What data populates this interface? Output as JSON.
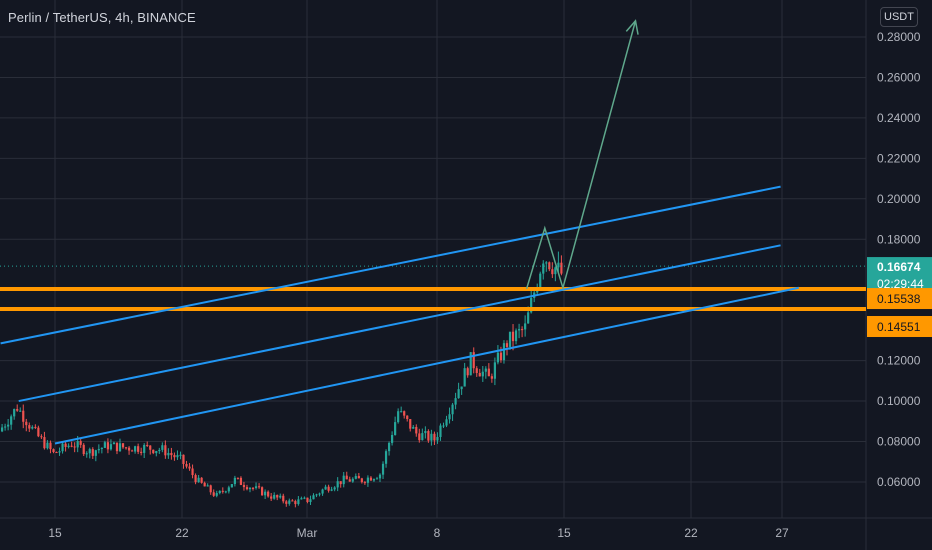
{
  "header": {
    "symbol": "Perlin / TetherUS",
    "interval": "4h",
    "exchange": "BINANCE"
  },
  "currency_button": {
    "label": "USDT"
  },
  "colors": {
    "background": "#131722",
    "grid": "#2a2e39",
    "candle_up": "#26a69a",
    "candle_down": "#ef5350",
    "channel": "#2196f3",
    "support_zone": "#ff9800",
    "forecast_arrow": "#5fa88c",
    "axis_text": "#b2b5be",
    "price_tag": "#26a69a",
    "level_tag": "#ff9800"
  },
  "price_tags": {
    "last_price": "0.16674",
    "countdown": "02:29:44",
    "level_upper": "0.15538",
    "level_lower": "0.14551"
  },
  "chart_data": {
    "type": "candlestick",
    "title": "Perlin / TetherUS, 4h, BINANCE",
    "y_axis_label": "USDT",
    "x_axis_ticks": [
      "15",
      "22",
      "Mar",
      "8",
      "15",
      "22",
      "27"
    ],
    "y_axis_ticks": [
      "0.28000",
      "0.26000",
      "0.24000",
      "0.22000",
      "0.20000",
      "0.18000",
      "0.12000",
      "0.10000",
      "0.08000",
      "0.06000"
    ],
    "ylim": [
      0.04,
      0.29
    ],
    "grid": true,
    "last_price": 0.16674,
    "horizontal_levels": [
      0.15538,
      0.14551
    ],
    "price_path": [
      [
        "Feb 12",
        0.085
      ],
      [
        "Feb 13",
        0.097
      ],
      [
        "Feb 14",
        0.084
      ],
      [
        "Feb 15",
        0.074
      ],
      [
        "Feb 16",
        0.079
      ],
      [
        "Feb 17",
        0.075
      ],
      [
        "Feb 18",
        0.078
      ],
      [
        "Feb 19",
        0.077
      ],
      [
        "Feb 20",
        0.077
      ],
      [
        "Feb 21",
        0.076
      ],
      [
        "Feb 22",
        0.071
      ],
      [
        "Feb 23",
        0.06
      ],
      [
        "Feb 24",
        0.053
      ],
      [
        "Feb 25",
        0.061
      ],
      [
        "Feb 26",
        0.057
      ],
      [
        "Feb 27",
        0.053
      ],
      [
        "Feb 28",
        0.05
      ],
      [
        "Mar 1",
        0.051
      ],
      [
        "Mar 2",
        0.057
      ],
      [
        "Mar 3",
        0.061
      ],
      [
        "Mar 4",
        0.061
      ],
      [
        "Mar 5",
        0.064
      ],
      [
        "Mar 6",
        0.095
      ],
      [
        "Mar 7",
        0.084
      ],
      [
        "Mar 8",
        0.081
      ],
      [
        "Mar 9",
        0.1
      ],
      [
        "Mar 10",
        0.12
      ],
      [
        "Mar 11",
        0.111
      ],
      [
        "Mar 12",
        0.129
      ],
      [
        "Mar 13",
        0.136
      ],
      [
        "Mar 14",
        0.172
      ],
      [
        "Mar 15",
        0.163
      ]
    ],
    "channel_lines": [
      {
        "from": [
          "Feb 12",
          0.1285
        ],
        "to": [
          "Mar 27",
          0.206
        ]
      },
      {
        "from": [
          "Feb 13",
          0.1
        ],
        "to": [
          "Mar 27",
          0.177
        ]
      },
      {
        "from": [
          "Feb 15",
          0.079
        ],
        "to": [
          "Mar 28",
          0.156
        ]
      }
    ],
    "forecast_path": [
      [
        "Mar 13",
        0.1555
      ],
      [
        "Mar 14",
        0.1855
      ],
      [
        "Mar 15",
        0.156
      ],
      [
        "Mar 19",
        0.288
      ]
    ]
  }
}
